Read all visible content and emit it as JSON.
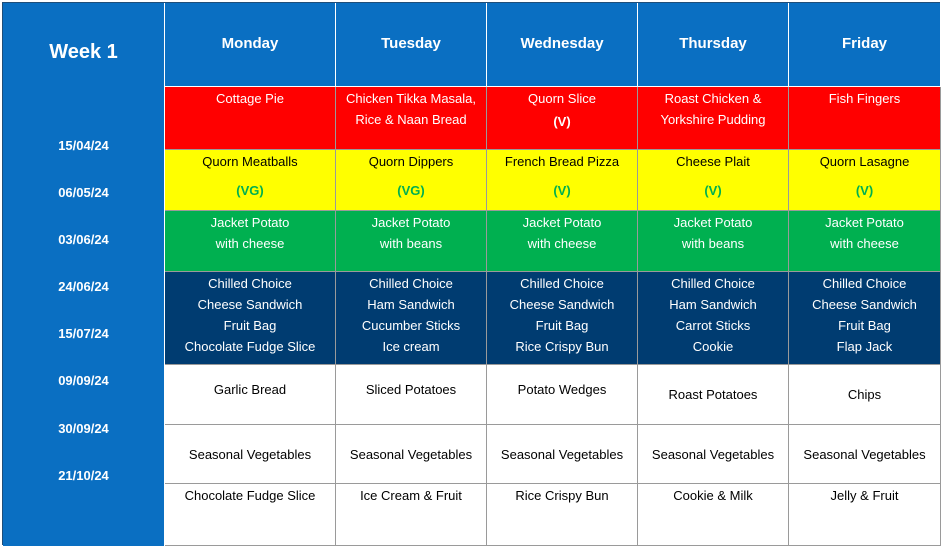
{
  "week_label": "Week 1",
  "dates": [
    "15/04/24",
    "06/05/24",
    "03/06/24",
    "24/06/24",
    "15/07/24",
    "09/09/24",
    "30/09/24",
    "21/10/24"
  ],
  "days": [
    "Monday",
    "Tuesday",
    "Wednesday",
    "Thursday",
    "Friday"
  ],
  "main_meals": [
    {
      "lines": [
        "Cottage Pie"
      ],
      "tag": ""
    },
    {
      "lines": [
        "Chicken Tikka Masala,",
        "Rice & Naan Bread"
      ],
      "tag": ""
    },
    {
      "lines": [
        "Quorn Slice"
      ],
      "tag": "(V)"
    },
    {
      "lines": [
        "Roast Chicken &",
        "Yorkshire Pudding"
      ],
      "tag": ""
    },
    {
      "lines": [
        "Fish Fingers"
      ],
      "tag": ""
    }
  ],
  "vegetarian_meals": [
    {
      "lines": [
        "Quorn Meatballs"
      ],
      "tag": "(VG)"
    },
    {
      "lines": [
        "Quorn Dippers"
      ],
      "tag": "(VG)"
    },
    {
      "lines": [
        "French Bread Pizza"
      ],
      "tag": "(V)"
    },
    {
      "lines": [
        "Cheese Plait"
      ],
      "tag": "(V)"
    },
    {
      "lines": [
        "Quorn Lasagne"
      ],
      "tag": "(V)"
    }
  ],
  "jacket_potatoes": [
    [
      "Jacket Potato",
      "with cheese"
    ],
    [
      "Jacket Potato",
      "with beans"
    ],
    [
      "Jacket Potato",
      "with cheese"
    ],
    [
      "Jacket Potato",
      "with beans"
    ],
    [
      "Jacket Potato",
      "with cheese"
    ]
  ],
  "chilled_choice": [
    [
      "Chilled Choice",
      "Cheese Sandwich",
      "Fruit Bag",
      "Chocolate Fudge Slice"
    ],
    [
      "Chilled Choice",
      "Ham Sandwich",
      "Cucumber Sticks",
      "Ice cream"
    ],
    [
      "Chilled Choice",
      "Cheese Sandwich",
      "Fruit Bag",
      "Rice Crispy Bun"
    ],
    [
      "Chilled Choice",
      "Ham Sandwich",
      "Carrot Sticks",
      "Cookie"
    ],
    [
      "Chilled Choice",
      "Cheese Sandwich",
      "Fruit Bag",
      "Flap Jack"
    ]
  ],
  "sides": [
    "Garlic Bread",
    "Sliced Potatoes",
    "Potato Wedges",
    "Roast Potatoes",
    "Chips"
  ],
  "vegetables": [
    "Seasonal Vegetables",
    "Seasonal Vegetables",
    "Seasonal Vegetables",
    "Seasonal Vegetables",
    "Seasonal Vegetables"
  ],
  "desserts": [
    "Chocolate Fudge Slice",
    "Ice Cream & Fruit",
    "Rice Crispy Bun",
    "Cookie & Milk",
    "Jelly & Fruit"
  ],
  "colors": {
    "header_blue": "#0a6fc2",
    "main_red": "#ff0000",
    "veg_yellow": "#ffff00",
    "potato_green": "#00b050",
    "chilled_navy": "#003c71",
    "tag_green": "#00b050"
  }
}
